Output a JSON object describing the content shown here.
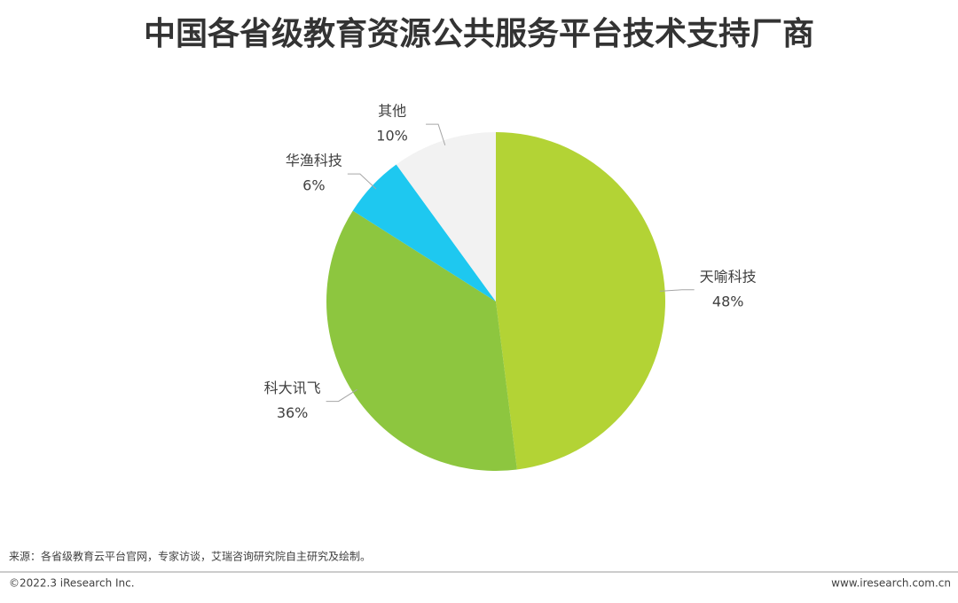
{
  "chart_data": {
    "type": "pie",
    "title": "中国各省级教育资源公共服务平台技术支持厂商",
    "categories": [
      "天喻科技",
      "科大讯飞",
      "华渔科技",
      "其他"
    ],
    "values": [
      48,
      36,
      6,
      10
    ],
    "value_labels": [
      "48%",
      "36%",
      "6%",
      "10%"
    ],
    "colors": [
      "#b3d335",
      "#8dc63f",
      "#1ec8f0",
      "#f2f2f2"
    ]
  },
  "footer": {
    "source": "来源：各省级教育云平台官网，专家访谈，艾瑞咨询研究院自主研究及绘制。",
    "copyright": "©2022.3 iResearch Inc.",
    "url": "www.iresearch.com.cn"
  }
}
